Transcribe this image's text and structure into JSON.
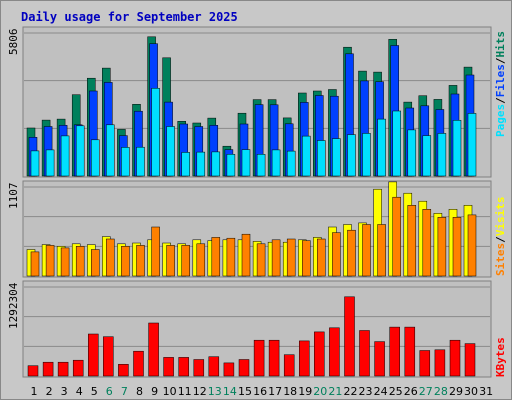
{
  "title": "Daily usage for September 2025",
  "colors": {
    "title": "#0000c0",
    "hits": "#00805c",
    "files": "#0040ff",
    "pages": "#00e0ff",
    "visits": "#ffff00",
    "sites": "#ff8000",
    "kbytes": "#ff0000",
    "weekend_label": "#00805c",
    "weekday_label": "#000000",
    "panel_bg": "#c0c0c0",
    "frame_bg": "#c8c8c8"
  },
  "chart_data": [
    {
      "type": "bar",
      "name": "hits-files-pages",
      "ytick": "5806",
      "ymax": 5806,
      "legend": {
        "pages": "Pages",
        "sep1": "/",
        "files": "Files",
        "sep2": "/",
        "hits": "Hits"
      },
      "series": [
        {
          "name": "Hits",
          "values": [
            1950,
            2270,
            2310,
            3300,
            3970,
            4380,
            1890,
            2910,
            5650,
            4800,
            2220,
            2150,
            2350,
            1210,
            2550,
            3100,
            3100,
            2360,
            3370,
            3450,
            3510,
            5230,
            4260,
            4220,
            5550,
            3000,
            3260,
            3110,
            3680,
            4420
          ]
        },
        {
          "name": "Files",
          "values": [
            1570,
            2010,
            2060,
            2080,
            3450,
            3800,
            1640,
            2630,
            5370,
            3000,
            2110,
            2010,
            2060,
            1070,
            2110,
            2900,
            2890,
            2120,
            2990,
            3270,
            3240,
            4960,
            3860,
            3830,
            5300,
            2760,
            2850,
            2700,
            3330,
            4100
          ]
        },
        {
          "name": "Pages",
          "values": [
            1020,
            1060,
            1630,
            2040,
            1470,
            2080,
            1160,
            1170,
            3560,
            2010,
            960,
            970,
            980,
            880,
            1070,
            880,
            1060,
            1010,
            1620,
            1440,
            1520,
            1680,
            1730,
            2310,
            2640,
            1870,
            1640,
            1730,
            2260,
            2540
          ]
        }
      ]
    },
    {
      "type": "bar",
      "name": "visits-sites",
      "ytick": "1107",
      "ymax": 1107,
      "legend": {
        "sites": "Sites",
        "sep1": "/",
        "visits": "Visits"
      },
      "series": [
        {
          "name": "Visits",
          "values": [
            330,
            390,
            370,
            400,
            390,
            490,
            400,
            410,
            450,
            410,
            400,
            450,
            440,
            450,
            450,
            430,
            420,
            420,
            450,
            480,
            610,
            640,
            660,
            1080,
            1170,
            1030,
            930,
            780,
            830,
            880
          ]
        },
        {
          "name": "Sites",
          "values": [
            300,
            380,
            350,
            370,
            330,
            460,
            370,
            380,
            610,
            380,
            380,
            400,
            480,
            470,
            520,
            400,
            450,
            460,
            440,
            460,
            540,
            570,
            640,
            640,
            980,
            880,
            830,
            730,
            730,
            760
          ]
        }
      ]
    },
    {
      "type": "bar",
      "name": "kbytes",
      "ytick": "1292304",
      "ymax": 1292304,
      "legend": {
        "kbytes": "KBytes"
      },
      "series": [
        {
          "name": "KBytes",
          "values": [
            150000,
            200000,
            200000,
            230000,
            610000,
            570000,
            170000,
            360000,
            770000,
            270000,
            270000,
            240000,
            280000,
            190000,
            240000,
            520000,
            520000,
            310000,
            510000,
            640000,
            700000,
            1150000,
            660000,
            500000,
            710000,
            710000,
            370000,
            380000,
            520000,
            470000
          ]
        }
      ]
    }
  ],
  "x_labels": [
    "1",
    "2",
    "3",
    "4",
    "5",
    "6",
    "7",
    "8",
    "9",
    "10",
    "11",
    "12",
    "13",
    "14",
    "15",
    "16",
    "17",
    "18",
    "19",
    "20",
    "21",
    "22",
    "23",
    "24",
    "25",
    "26",
    "27",
    "28",
    "29",
    "30",
    "31"
  ],
  "weekend_days": [
    6,
    7,
    13,
    14,
    20,
    21,
    27,
    28
  ]
}
